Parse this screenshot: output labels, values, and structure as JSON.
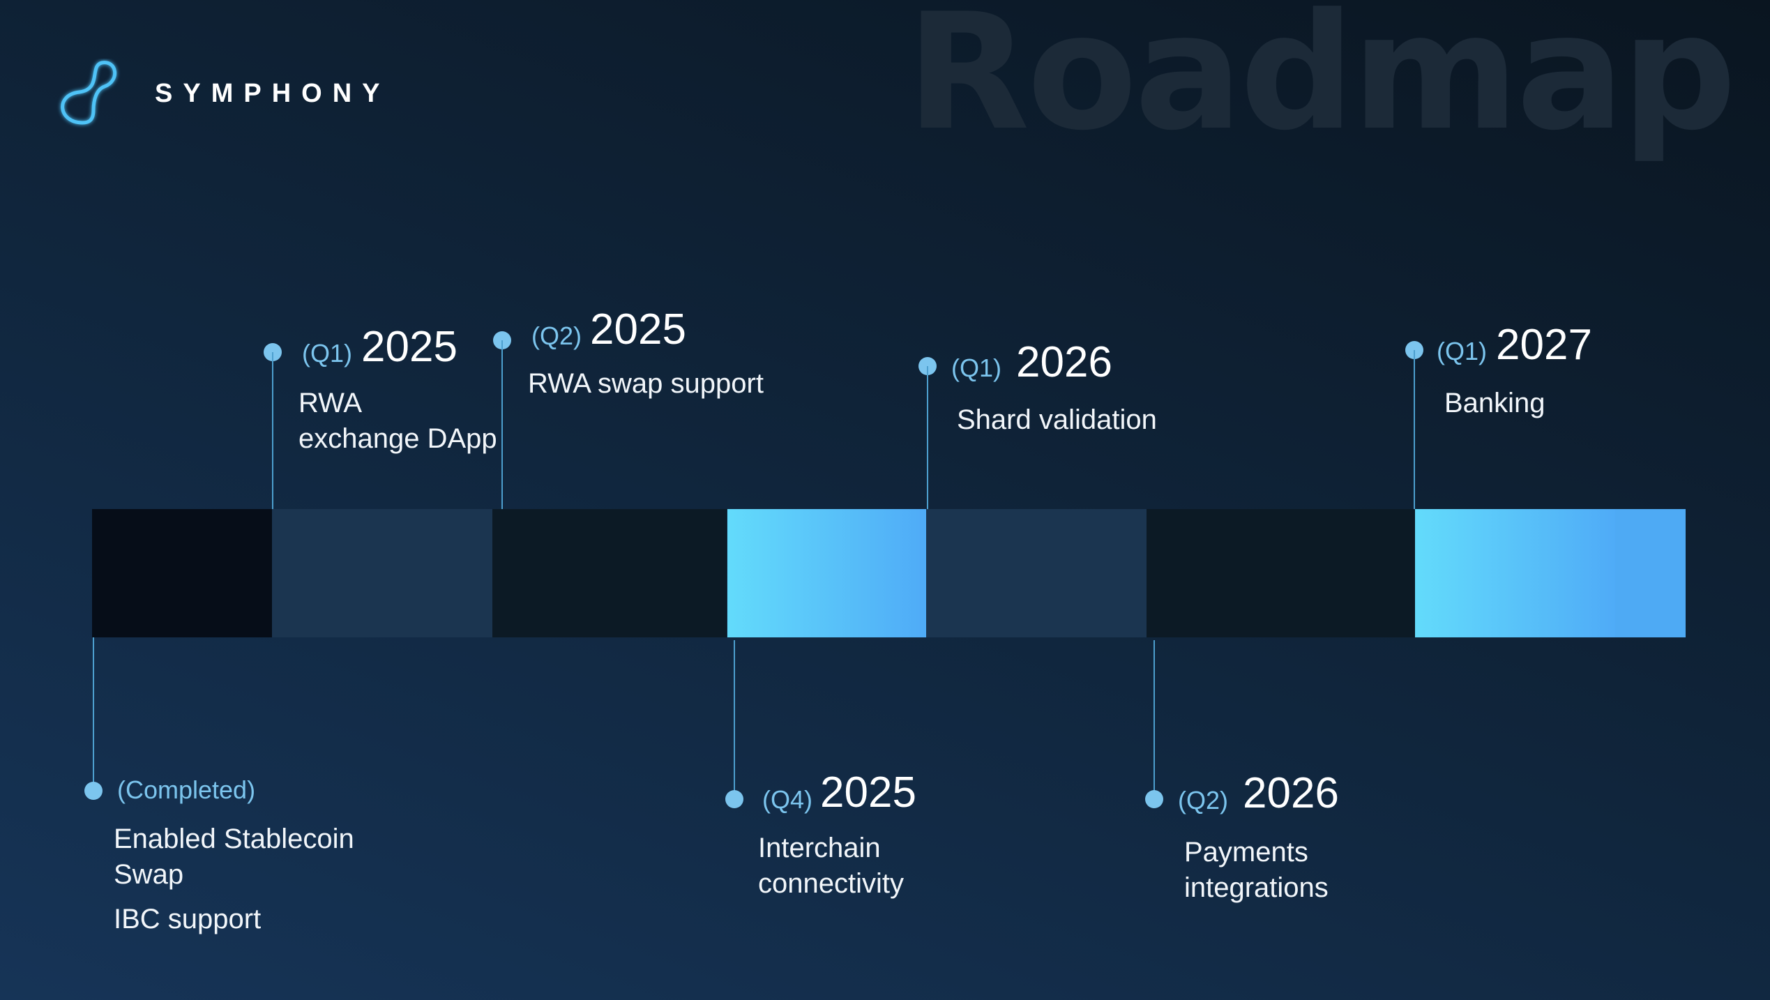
{
  "header": {
    "brand_name": "SYMPHONY",
    "logo_icon": "infinity-loop-icon",
    "watermark": "Roadmap"
  },
  "colors": {
    "accent": "#7cc5ee",
    "bar_bright_start": "#63dbfb",
    "bar_bright_end": "#4fabf7"
  },
  "milestones": {
    "completed": {
      "tag": "(Completed)",
      "items": [
        "Enabled Stablecoin",
        "Swap",
        "IBC support"
      ]
    },
    "q1_2025": {
      "quarter": "(Q1)",
      "year": "2025",
      "lines": [
        "RWA",
        "exchange DApp"
      ]
    },
    "q2_2025": {
      "quarter": "(Q2)",
      "year": "2025",
      "lines": [
        "RWA swap support"
      ]
    },
    "q4_2025": {
      "quarter": "(Q4)",
      "year": "2025",
      "lines": [
        "Interchain",
        "connectivity"
      ]
    },
    "q1_2026": {
      "quarter": "(Q1)",
      "year": "2026",
      "lines": [
        "Shard validation"
      ]
    },
    "q2_2026": {
      "quarter": "(Q2)",
      "year": "2026",
      "lines": [
        "Payments",
        "integrations"
      ]
    },
    "q1_2027": {
      "quarter": "(Q1)",
      "year": "2027",
      "lines": [
        "Banking"
      ]
    }
  }
}
